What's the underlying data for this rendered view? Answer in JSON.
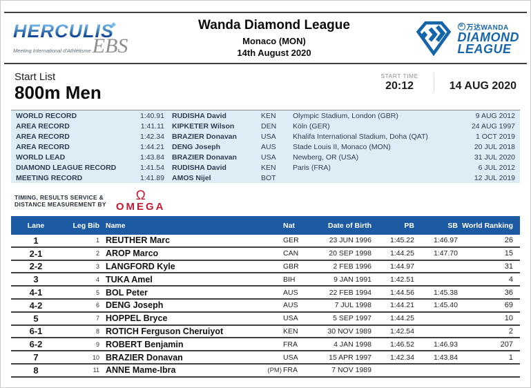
{
  "header": {
    "title": "Wanda Diamond League",
    "location": "Monaco (MON)",
    "date": "14th August 2020"
  },
  "branding": {
    "herculis": {
      "name": "HERCULIS",
      "diamond_icon": "diamond",
      "subtitle": "Meeting International d'Athlétisme",
      "ebs": "EBS"
    },
    "diamond_league": {
      "wanda_mark": "W",
      "wanda_text": "万达WANDA",
      "line1": "DIAMOND",
      "line2": "LEAGUE"
    }
  },
  "event": {
    "list_label": "Start List",
    "name": "800m Men",
    "start_time_label": "START TIME",
    "start_time": "20:12",
    "date": "14 AUG 2020"
  },
  "records": [
    {
      "label": "WORLD RECORD",
      "time": "1:40.91",
      "athlete": "RUDISHA David",
      "nat": "KEN",
      "venue": "Olympic Stadium, London (GBR)",
      "date": "9 AUG 2012"
    },
    {
      "label": "AREA RECORD",
      "time": "1:41.11",
      "athlete": "KIPKETER Wilson",
      "nat": "DEN",
      "venue": "Köln (GER)",
      "date": "24 AUG 1997"
    },
    {
      "label": "AREA RECORD",
      "time": "1:42.34",
      "athlete": "BRAZIER Donavan",
      "nat": "USA",
      "venue": "Khalifa International Stadium, Doha (QAT)",
      "date": "1 OCT 2019"
    },
    {
      "label": "AREA RECORD",
      "time": "1:44.21",
      "athlete": "DENG Joseph",
      "nat": "AUS",
      "venue": "Stade Louis II, Monaco (MON)",
      "date": "20 JUL 2018"
    },
    {
      "label": "WORLD LEAD",
      "time": "1:43.84",
      "athlete": "BRAZIER Donavan",
      "nat": "USA",
      "venue": "Newberg, OR (USA)",
      "date": "31 JUL 2020"
    },
    {
      "label": "DIAMOND LEAGUE RECORD",
      "time": "1:41.54",
      "athlete": "RUDISHA David",
      "nat": "KEN",
      "venue": "Paris (FRA)",
      "date": "6 JUL 2012"
    },
    {
      "label": "MEETING RECORD",
      "time": "1:41.89",
      "athlete": "AMOS Nijel",
      "nat": "BOT",
      "venue": "",
      "date": "12 JUL 2019"
    }
  ],
  "timing": {
    "line1": "TIMING, RESULTS SERVICE &",
    "line2": "DISTANCE MEASUREMENT BY",
    "brand_symbol": "Ω",
    "brand": "OMEGA"
  },
  "roster": {
    "headers": {
      "lane": "Lane",
      "leg_bib": "Leg Bib",
      "name": "Name",
      "nat": "Nat",
      "dob": "Date of Birth",
      "pb": "PB",
      "sb": "SB",
      "ranking": "World Ranking"
    },
    "rows": [
      {
        "lane": "1",
        "bib": "1",
        "name": "REUTHER Marc",
        "tag": "",
        "nat": "GER",
        "dob": "23 JUN 1996",
        "pb": "1:45.22",
        "sb": "1:46.97",
        "rank": "26"
      },
      {
        "lane": "2-1",
        "bib": "2",
        "name": "AROP Marco",
        "tag": "",
        "nat": "CAN",
        "dob": "20 SEP 1998",
        "pb": "1:44.25",
        "sb": "1:47.70",
        "rank": "15"
      },
      {
        "lane": "2-2",
        "bib": "3",
        "name": "LANGFORD Kyle",
        "tag": "",
        "nat": "GBR",
        "dob": "2 FEB 1996",
        "pb": "1:44.97",
        "sb": "",
        "rank": "31"
      },
      {
        "lane": "3",
        "bib": "4",
        "name": "TUKA Amel",
        "tag": "",
        "nat": "BIH",
        "dob": "9 JAN 1991",
        "pb": "1:42.51",
        "sb": "",
        "rank": "4"
      },
      {
        "lane": "4-1",
        "bib": "5",
        "name": "BOL Peter",
        "tag": "",
        "nat": "AUS",
        "dob": "22 FEB 1994",
        "pb": "1:44.56",
        "sb": "1:45.38",
        "rank": "36"
      },
      {
        "lane": "4-2",
        "bib": "6",
        "name": "DENG Joseph",
        "tag": "",
        "nat": "AUS",
        "dob": "7 JUL 1998",
        "pb": "1:44.21",
        "sb": "1:45.40",
        "rank": "69"
      },
      {
        "lane": "5",
        "bib": "7",
        "name": "HOPPEL Bryce",
        "tag": "",
        "nat": "USA",
        "dob": "5 SEP 1997",
        "pb": "1:44.25",
        "sb": "",
        "rank": "10"
      },
      {
        "lane": "6-1",
        "bib": "8",
        "name": "ROTICH Ferguson Cheruiyot",
        "tag": "",
        "nat": "KEN",
        "dob": "30 NOV 1989",
        "pb": "1:42.54",
        "sb": "",
        "rank": "2"
      },
      {
        "lane": "6-2",
        "bib": "9",
        "name": "ROBERT Benjamin",
        "tag": "",
        "nat": "FRA",
        "dob": "4 JAN 1998",
        "pb": "1:46.52",
        "sb": "1:46.93",
        "rank": "207"
      },
      {
        "lane": "7",
        "bib": "10",
        "name": "BRAZIER Donavan",
        "tag": "",
        "nat": "USA",
        "dob": "15 APR 1997",
        "pb": "1:42.34",
        "sb": "1:43.84",
        "rank": "1"
      },
      {
        "lane": "8",
        "bib": "11",
        "name": "ANNE Mame-Ibra",
        "tag": "(PM)",
        "nat": "FRA",
        "dob": "7 NOV 1989",
        "pb": "",
        "sb": "",
        "rank": ""
      }
    ]
  },
  "colors": {
    "table_header_blue": "#1c5ba3",
    "records_background": "#ddedf6",
    "diamond_league_blue": "#1565ab",
    "omega_red": "#c41933",
    "row_divider": "#3f3f3f"
  }
}
